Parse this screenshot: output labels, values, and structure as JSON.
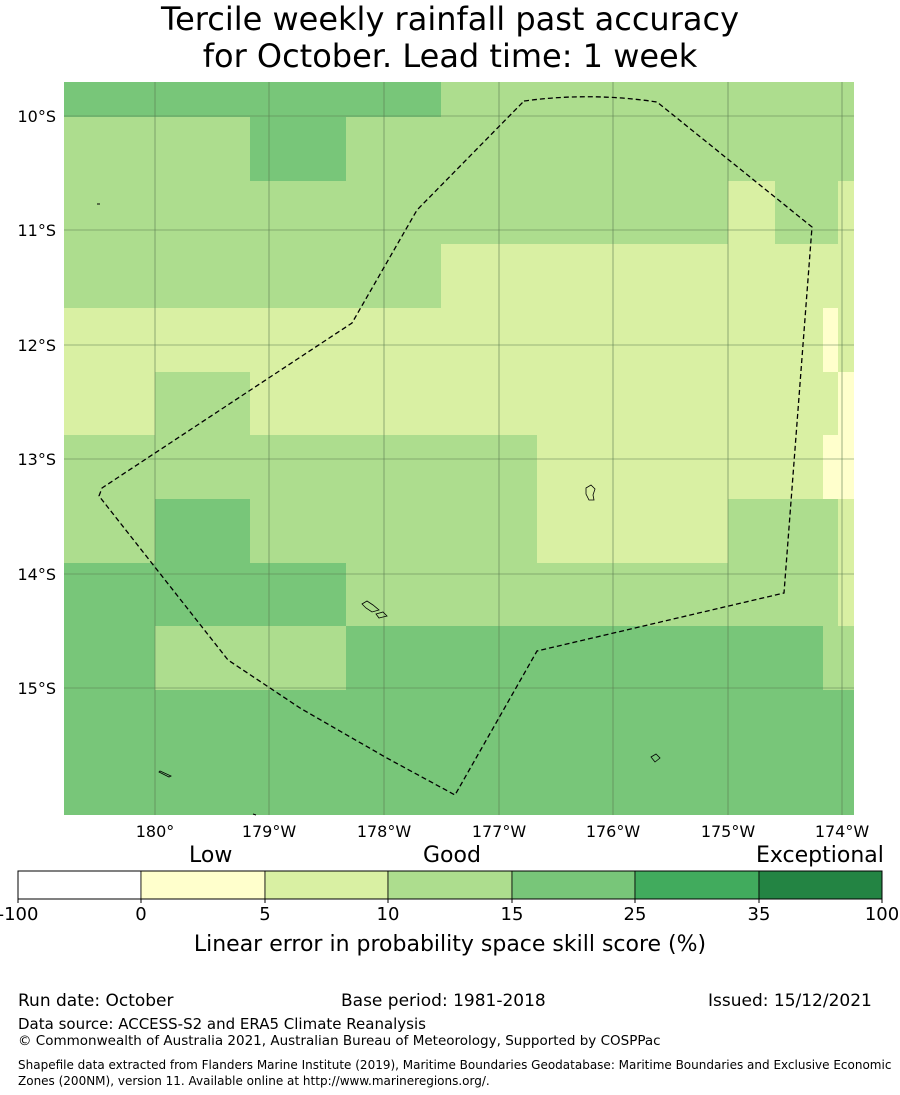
{
  "title": {
    "line1": "Tercile weekly rainfall past accuracy",
    "line2": "for October. Lead time: 1 week"
  },
  "map": {
    "lat_labels": [
      "10°S",
      "11°S",
      "12°S",
      "13°S",
      "14°S",
      "15°S"
    ],
    "lon_labels": [
      "180°",
      "179°W",
      "178°W",
      "177°W",
      "176°W",
      "175°W",
      "174°W"
    ],
    "category_colors": {
      "0-5": "#ffffcc",
      "5-10": "#d9f0a3",
      "10-15": "#addd8e",
      "15-25": "#78c679",
      "25-35": "#41ab5d",
      "35-100": "#238443"
    },
    "grid_rows": [
      [
        "G",
        "G",
        "G",
        "G",
        "L",
        "L",
        "L",
        "L",
        "L",
        "L",
        "L"
      ],
      [
        "L",
        "L",
        "G",
        "L",
        "L",
        "L",
        "L",
        "L",
        "L",
        "L",
        "L"
      ],
      [
        "L",
        "L",
        "L",
        "L",
        "L",
        "L",
        "L",
        "Y",
        "L",
        "L",
        "Y"
      ],
      [
        "L",
        "L",
        "L",
        "L",
        "Y",
        "Y",
        "Y",
        "Y",
        "Y",
        "Y",
        "Y"
      ],
      [
        "Y",
        "Y",
        "Y",
        "Y",
        "Y",
        "Y",
        "Y",
        "Y",
        "Y",
        "W",
        "Y"
      ],
      [
        "Y",
        "L",
        "Y",
        "Y",
        "Y",
        "Y",
        "Y",
        "Y",
        "Y",
        "Y",
        "W"
      ],
      [
        "L",
        "L",
        "L",
        "L",
        "L",
        "Y",
        "Y",
        "Y",
        "Y",
        "W",
        "W"
      ],
      [
        "L",
        "G",
        "L",
        "L",
        "L",
        "Y",
        "Y",
        "L",
        "L",
        "L",
        "Y"
      ],
      [
        "G",
        "G",
        "G",
        "L",
        "L",
        "L",
        "L",
        "L",
        "L",
        "L",
        "Y"
      ],
      [
        "G",
        "L",
        "L",
        "G",
        "G",
        "G",
        "G",
        "G",
        "G",
        "L",
        "L"
      ],
      [
        "G",
        "G",
        "G",
        "G",
        "G",
        "G",
        "G",
        "G",
        "G",
        "G",
        "G"
      ]
    ],
    "grid_legend": {
      "W": "0-5",
      "Y": "5-10",
      "L": "10-15",
      "G": "15-25"
    }
  },
  "colorbar": {
    "category_labels": [
      "Low",
      "Good",
      "Exceptional"
    ],
    "tick_labels": [
      "-100",
      "0",
      "5",
      "10",
      "15",
      "25",
      "35",
      "100"
    ],
    "colors": [
      "#ffffff",
      "#ffffcc",
      "#d9f0a3",
      "#addd8e",
      "#78c679",
      "#41ab5d",
      "#238443"
    ],
    "axis_label": "Linear error in probability space skill score (%)"
  },
  "footer": {
    "run_date": "Run date: October",
    "base_period": "Base period: 1981-2018",
    "issued": "Issued: 15/12/2021",
    "data_source": "Data source: ACCESS-S2 and ERA5 Climate Reanalysis",
    "copyright": "© Commonwealth of Australia 2021, Australian Bureau of Meteorology, Supported by COSPPac",
    "shapefile": "Shapefile data extracted from Flanders Marine Institute (2019), Maritime Boundaries Geodatabase: Maritime Boundaries and Exclusive Economic Zones (200NM), version 11. Available online at http://www.marineregions.org/."
  }
}
